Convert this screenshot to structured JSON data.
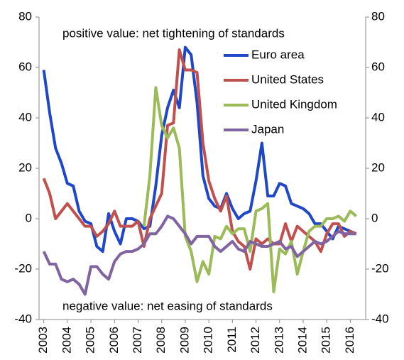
{
  "chart_data": {
    "type": "line",
    "annotations": [
      "positive value: net tightening of standards",
      "negative value: net easing of standards"
    ],
    "x": [
      2003,
      2003.25,
      2003.5,
      2003.75,
      2004,
      2004.25,
      2004.5,
      2004.75,
      2005,
      2005.25,
      2005.5,
      2005.75,
      2006,
      2006.25,
      2006.5,
      2006.75,
      2007,
      2007.25,
      2007.5,
      2007.75,
      2008,
      2008.25,
      2008.5,
      2008.75,
      2009,
      2009.25,
      2009.5,
      2009.75,
      2010,
      2010.25,
      2010.5,
      2010.75,
      2011,
      2011.25,
      2011.5,
      2011.75,
      2012,
      2012.25,
      2012.5,
      2012.75,
      2013,
      2013.25,
      2013.5,
      2013.75,
      2014,
      2014.25,
      2014.5,
      2014.75,
      2015,
      2015.25,
      2015.5,
      2015.75,
      2016,
      2016.25
    ],
    "series": [
      {
        "name": "Euro area",
        "color": "#1f47c8",
        "values": [
          59,
          42,
          28,
          22,
          14,
          13,
          3,
          -1,
          -2,
          -11,
          -13,
          2,
          -5,
          -10,
          0,
          0,
          -1,
          -4,
          -3,
          13,
          33,
          44,
          51,
          44,
          68,
          65,
          46,
          17,
          8,
          5,
          4,
          10,
          4,
          0,
          2,
          3,
          15,
          30,
          9,
          9,
          14,
          13,
          6,
          5,
          4,
          2,
          -2,
          -2,
          -5,
          -8,
          -3,
          -4,
          -5,
          -6
        ]
      },
      {
        "name": "United States",
        "color": "#c0504d",
        "values": [
          16,
          10,
          0,
          3,
          6,
          3,
          0,
          -3,
          -3,
          -7,
          -5,
          -2,
          3,
          -3,
          -3,
          -3,
          -1,
          -11,
          0,
          5,
          10,
          37,
          38,
          67,
          59,
          59,
          58,
          30,
          15,
          8,
          3,
          9,
          -5,
          -9,
          -11,
          -20,
          -8,
          -10,
          -8,
          -10,
          -10,
          -2,
          -9,
          -3,
          -5,
          -7,
          -9,
          -13,
          -6,
          -2,
          -2,
          -7,
          -5,
          -6
        ]
      },
      {
        "name": "United Kingdom",
        "color": "#9bbb59",
        "values": [
          null,
          null,
          null,
          null,
          null,
          null,
          null,
          null,
          null,
          null,
          null,
          null,
          null,
          null,
          null,
          null,
          null,
          -3,
          17,
          52,
          37,
          32,
          36,
          28,
          -7,
          -13,
          -25,
          -17,
          -22,
          -7,
          -8,
          -3,
          -6,
          -4,
          -4,
          -13,
          3,
          4,
          6,
          -29,
          -12,
          -14,
          -9,
          -22,
          -13,
          -5,
          -3,
          -3,
          0,
          0,
          1,
          -1,
          3,
          1
        ]
      },
      {
        "name": "Japan",
        "color": "#8064a2",
        "values": [
          -13,
          -18,
          -18,
          -24,
          -25,
          -24,
          -26,
          -30,
          -19,
          -19,
          -22,
          -24,
          -17,
          -14,
          -13,
          -13,
          -12,
          -10,
          -6,
          -6,
          -3,
          1,
          0,
          -3,
          -6,
          -10,
          -7,
          -7,
          -7,
          -11,
          -13,
          -11,
          -9,
          -12,
          -13,
          -9,
          -10,
          -11,
          -11,
          -10,
          -9,
          -12,
          -11,
          -15,
          -13,
          -11,
          -9,
          -10,
          -9,
          -7,
          -5,
          -6,
          -6,
          -6
        ]
      }
    ],
    "xlim": [
      2002.8,
      2016.65
    ],
    "xticks": [
      2003,
      2004,
      2005,
      2006,
      2007,
      2008,
      2009,
      2010,
      2011,
      2012,
      2013,
      2014,
      2015,
      2016
    ],
    "ylim": [
      -40,
      80
    ],
    "yticks": [
      -40,
      -20,
      0,
      20,
      40,
      60,
      80
    ],
    "y2lim": [
      -40,
      80
    ],
    "y2ticks": [
      -40,
      -20,
      0,
      20,
      40,
      60,
      80
    ]
  }
}
